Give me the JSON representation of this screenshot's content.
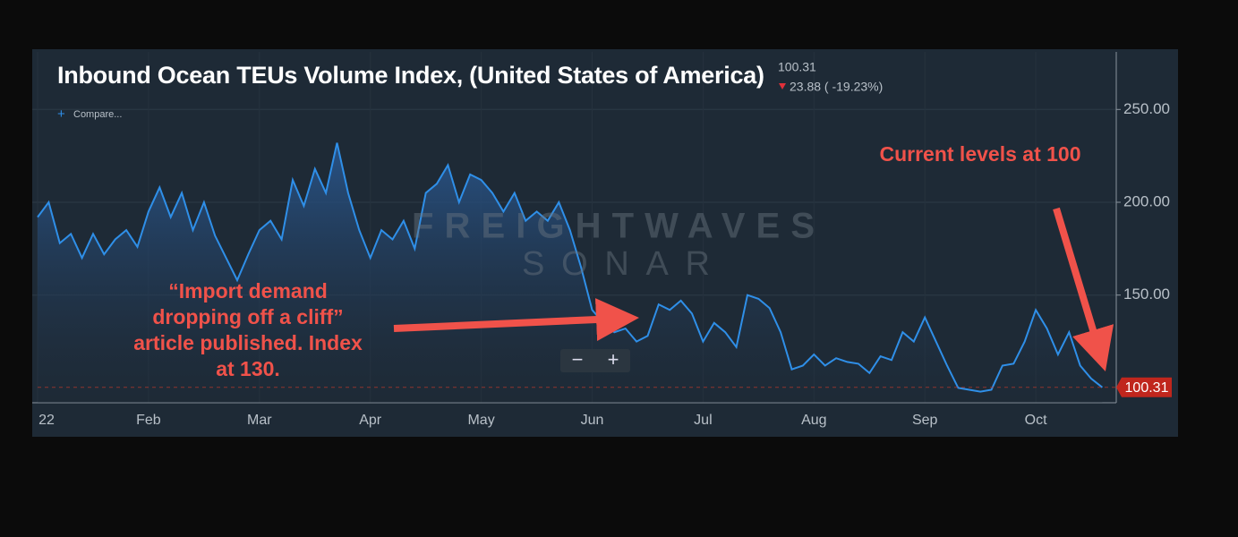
{
  "chart_data": {
    "type": "line",
    "title": "Inbound Ocean TEUs Volume Index, (United States of America)",
    "change_text": "23.88 ( -19.23%)",
    "compare_label": "Compare...",
    "watermark": [
      "FREIGHTWAVES",
      "SONAR"
    ],
    "annotations": [
      {
        "lines": [
          "“Import demand",
          "dropping off a cliff”",
          "article published. Index",
          "at 130."
        ]
      },
      {
        "lines": [
          "Current levels at 100"
        ]
      }
    ],
    "categories": [
      "22",
      null,
      null,
      null,
      null,
      null,
      null,
      null,
      null,
      null,
      "Feb",
      null,
      null,
      null,
      null,
      null,
      null,
      null,
      null,
      null,
      "Mar",
      null,
      null,
      null,
      null,
      null,
      null,
      null,
      null,
      null,
      "Apr",
      null,
      null,
      null,
      null,
      null,
      null,
      null,
      null,
      null,
      "May",
      null,
      null,
      null,
      null,
      null,
      null,
      null,
      null,
      null,
      "Jun",
      null,
      null,
      null,
      null,
      null,
      null,
      null,
      null,
      null,
      "Jul",
      null,
      null,
      null,
      null,
      null,
      null,
      null,
      null,
      null,
      "Aug",
      null,
      null,
      null,
      null,
      null,
      null,
      null,
      null,
      null,
      "Sep",
      null,
      null,
      null,
      null,
      null,
      null,
      null,
      null,
      null,
      "Oct",
      null,
      null,
      null,
      null,
      null,
      null
    ],
    "series": [
      {
        "name": "Inbound Ocean TEUs Volume Index",
        "color": "#2f8fe8",
        "values": [
          192,
          200,
          178,
          183,
          170,
          183,
          172,
          180,
          185,
          176,
          195,
          208,
          192,
          205,
          185,
          200,
          182,
          170,
          158,
          172,
          185,
          190,
          180,
          212,
          198,
          218,
          205,
          232,
          205,
          185,
          170,
          185,
          180,
          190,
          175,
          205,
          210,
          220,
          200,
          215,
          212,
          205,
          195,
          205,
          190,
          195,
          190,
          200,
          185,
          165,
          142,
          135,
          130,
          132,
          125,
          128,
          145,
          142,
          147,
          140,
          125,
          135,
          130,
          122,
          150,
          148,
          143,
          130,
          110,
          112,
          118,
          112,
          116,
          114,
          113,
          108,
          117,
          115,
          130,
          125,
          138,
          125,
          112,
          100,
          99,
          98,
          99,
          112,
          113,
          125,
          142,
          132,
          118,
          130,
          112,
          105,
          100.31
        ]
      }
    ],
    "ylim": [
      92,
      281
    ],
    "yticks": [
      {
        "value": 150,
        "label": "150.00"
      },
      {
        "value": 200,
        "label": "200.00"
      },
      {
        "value": 250,
        "label": "250.00"
      }
    ],
    "grid": true
  }
}
